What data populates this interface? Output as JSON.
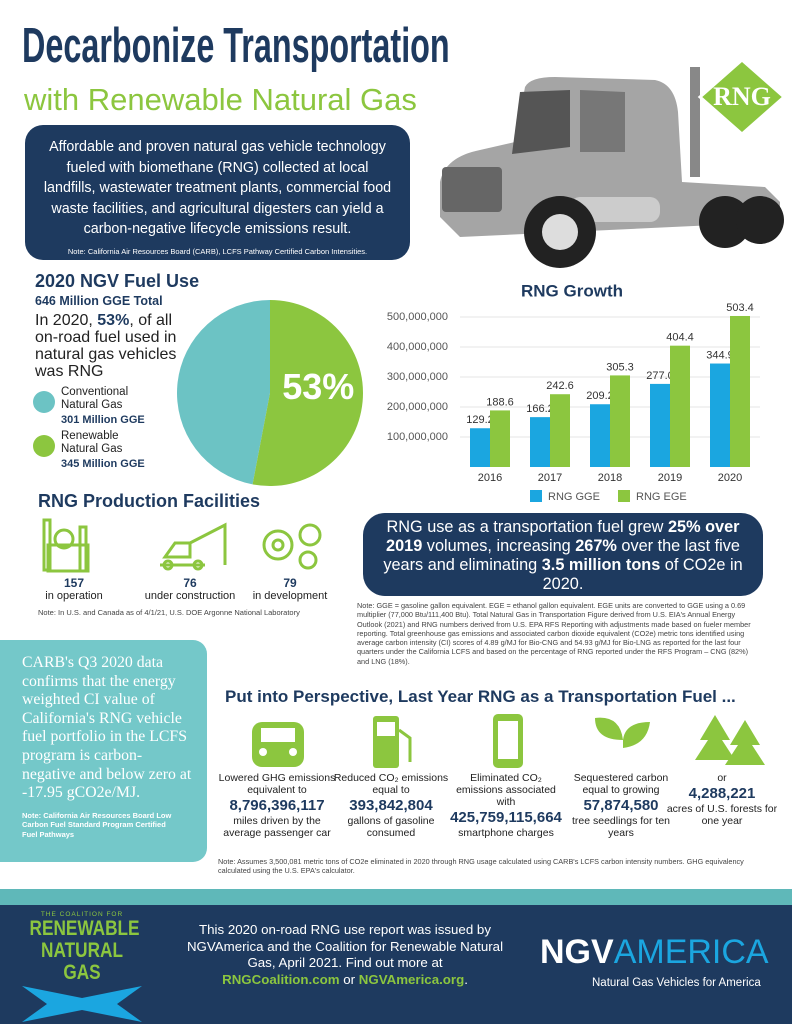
{
  "header": {
    "title": "Decarbonize Transportation",
    "subtitle": "with Renewable Natural Gas",
    "badge": "RNG"
  },
  "intro": {
    "text": "Affordable and proven natural gas vehicle technology fueled with biomethane (RNG) collected at local landfills, wastewater treatment plants, commercial food waste facilities, and agricultural digesters can yield a carbon-negative lifecycle emissions result.",
    "note": "Note: California Air Resources Board (CARB), LCFS Pathway Certified Carbon Intensities."
  },
  "fuel_use": {
    "heading": "2020 NGV Fuel Use",
    "total": "646 Million GGE Total",
    "text": [
      "In 2020, ",
      "53%",
      ", of all on-road fuel used in natural gas vehicles was RNG"
    ]
  },
  "chart_data": [
    {
      "type": "pie",
      "categories": [
        "Conventional Natural Gas",
        "Renewable Natural Gas"
      ],
      "amounts": [
        "301 Million GGE",
        "345 Million GGE"
      ],
      "values": [
        47,
        53
      ],
      "value_labels": [
        null,
        "53%"
      ],
      "colors": [
        "#6cc3c4",
        "#8cc63f"
      ]
    },
    {
      "type": "bar",
      "title": "RNG Growth",
      "categories": [
        "2016",
        "2017",
        "2018",
        "2019",
        "2020"
      ],
      "series": [
        {
          "name": "RNG GGE",
          "color": "#1ba6e0",
          "values": [
            129200000,
            166200000,
            209200000,
            277000000,
            344900000
          ],
          "value_labels": [
            "129.2",
            "166.2",
            "209.2",
            "277.0",
            "344.9"
          ]
        },
        {
          "name": "RNG EGE",
          "color": "#8cc63f",
          "values": [
            188600000,
            242600000,
            305300000,
            404400000,
            503400000
          ],
          "value_labels": [
            "188.6",
            "242.6",
            "305.3",
            "404.4",
            "503.4"
          ]
        }
      ],
      "ylim": [
        0,
        520000000
      ],
      "yticks": [
        {
          "value": 100000000,
          "label": "100,000,000"
        },
        {
          "value": 200000000,
          "label": "200,000,000"
        },
        {
          "value": 300000000,
          "label": "300,000,000"
        },
        {
          "value": 400000000,
          "label": "400,000,000"
        },
        {
          "value": 500000000,
          "label": "500,000,000"
        }
      ],
      "grid": true
    }
  ],
  "facilities": {
    "heading": "RNG Production Facilities",
    "items": [
      {
        "count": 157,
        "label": "in operation"
      },
      {
        "count": 76,
        "label": "under construction"
      },
      {
        "count": 79,
        "label": "in development"
      }
    ],
    "note": "Note: In U.S. and Canada as of 4/1/21, U.S. DOE Argonne National Laboratory"
  },
  "growth_callout": [
    "RNG use as a transportation fuel grew ",
    "25% over 2019",
    " volumes, increasing ",
    "267%",
    " over the last five years and eliminating ",
    "3.5 million tons",
    " of CO2e in 2020."
  ],
  "chart_note": "Note:  GGE = gasoline gallon equivalent.  EGE = ethanol gallon equivalent.  EGE units are converted to GGE using a 0.69 multiplier (77,000 Btu/111,400 Btu).  Total Natural Gas in Transportation Figure derived from U.S. EIA's Annual Energy Outlook (2021) and RNG numbers derived from U.S. EPA RFS Reporting with adjustments made based on fueler member reporting.  Total greenhouse gas emissions and associated carbon dioxide equivalent (CO2e) metric tons identified using average carbon intensity (CI) scores of 4.89 g/MJ for Bio-CNG and 54.93 g/MJ for Bio-LNG as reported for the last four quarters under the California LCFS and based on the percentage of RNG reported under the RFS Program – CNG (82%) and LNG (18%).",
  "carb": {
    "text": "CARB's Q3 2020 data confirms that the energy weighted CI value of California's RNG vehicle fuel portfolio in the LCFS program is carbon-negative and below zero at -17.95 gCO2e/MJ.",
    "note": "Note: California Air Resources Board Low Carbon Fuel Standard Program Certified Fuel Pathways"
  },
  "perspective": {
    "heading": "Put into Perspective, Last Year RNG as a Transportation Fuel ...",
    "items": [
      {
        "before": "Lowered GHG emissions equivalent to",
        "value": "8,796,396,117",
        "after": "miles driven by the average passenger car"
      },
      {
        "before": "Reduced CO₂ emissions equal to",
        "value": "393,842,804",
        "after": "gallons of gasoline consumed"
      },
      {
        "before": "Eliminated CO₂ emissions associated with",
        "value": "425,759,115,664",
        "after": "smartphone charges"
      },
      {
        "before": "Sequestered carbon equal to growing",
        "value": "57,874,580",
        "after": "tree seedlings for ten years"
      },
      {
        "before": "or",
        "value": "4,288,221",
        "after": "acres of U.S. forests for one year"
      }
    ],
    "note": "Note: Assumes 3,500,081 metric tons of CO2e eliminated in 2020 through RNG usage calculated using CARB's LCFS carbon intensity numbers. GHG equivalency calculated using the U.S. EPA's calculator."
  },
  "footer": {
    "logo": [
      "THE COALITION FOR",
      "RENEWABLE",
      "NATURAL GAS"
    ],
    "text": "This 2020 on-road RNG use report was issued by NGVAmerica and the Coalition for Renewable Natural Gas, April 2021. Find out more at",
    "links": [
      "RNGCoalition.com",
      " or ",
      "NGVAmerica.org",
      "."
    ],
    "brand": [
      "NGV",
      "AMERICA"
    ],
    "tagline": "Natural Gas Vehicles for America"
  }
}
